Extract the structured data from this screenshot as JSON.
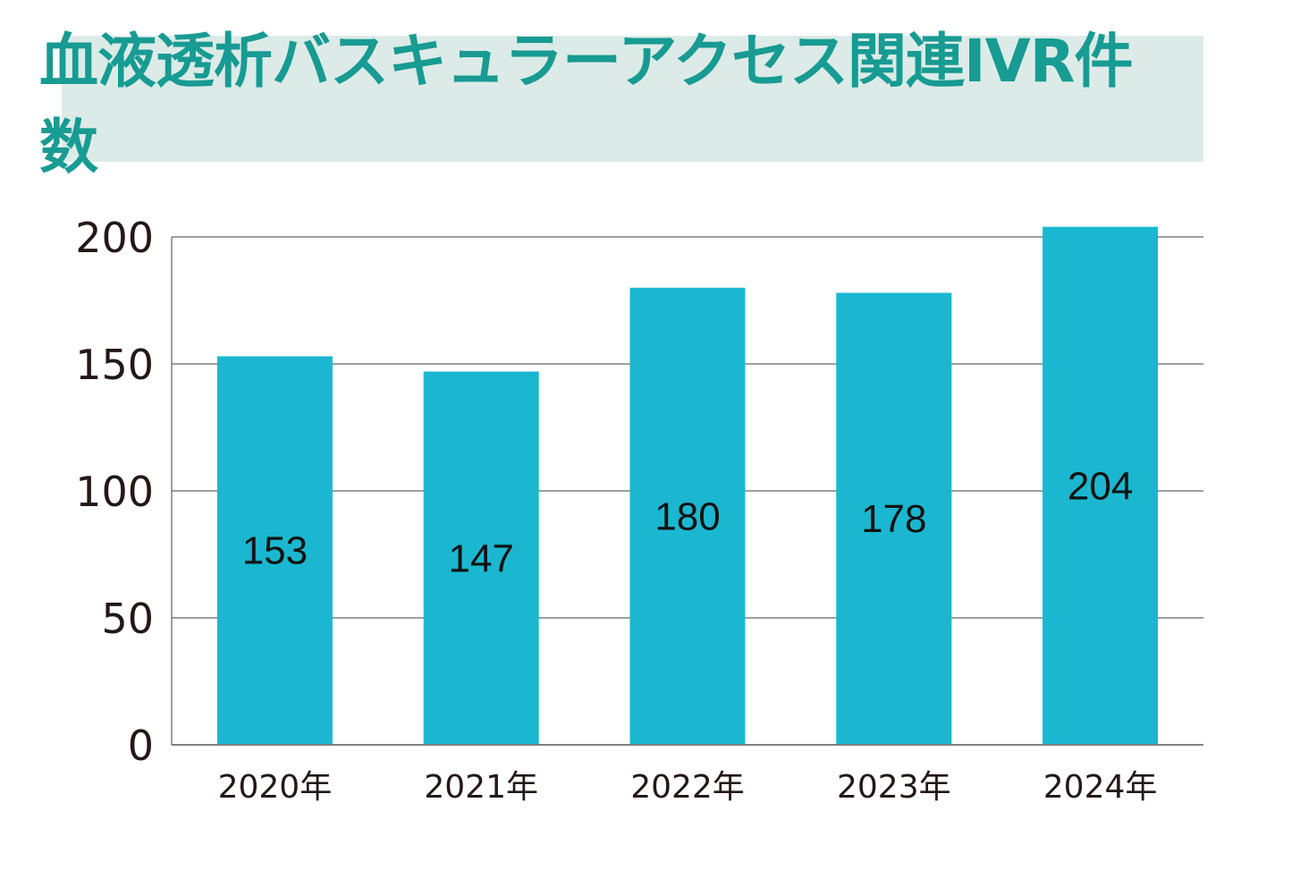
{
  "title": "血液透析バスキュラーアクセス関連IVR件数",
  "colors": {
    "bar": "#1bb7d0",
    "title": "#179b93",
    "title_bg": "#dcebe7",
    "grid": "#7f7f7f",
    "text": "#231815"
  },
  "chart_data": {
    "type": "bar",
    "title": "血液透析バスキュラーアクセス関連IVR件数",
    "categories": [
      "2020年",
      "2021年",
      "2022年",
      "2023年",
      "2024年"
    ],
    "values": [
      153,
      147,
      180,
      178,
      204
    ],
    "data_labels": [
      "153",
      "147",
      "180",
      "178",
      "204"
    ],
    "y_ticks": [
      "0",
      "50",
      "100",
      "150",
      "200"
    ],
    "ylim": [
      0,
      200
    ],
    "grid": true,
    "xlabel": "",
    "ylabel": ""
  }
}
